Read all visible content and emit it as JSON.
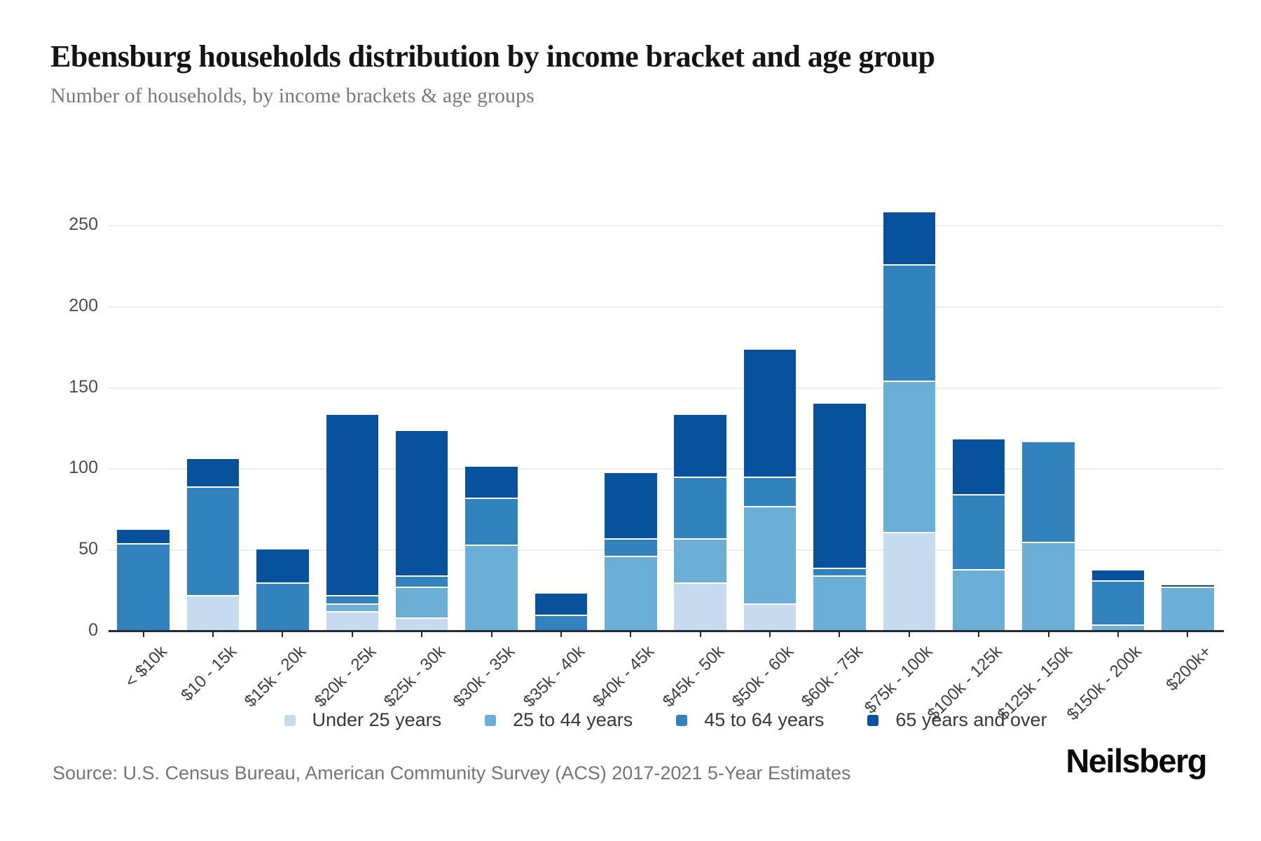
{
  "header": {
    "title": "Ebensburg households distribution by income bracket and age group",
    "subtitle": "Number of households, by income brackets & age groups"
  },
  "footer": {
    "source": "Source: U.S. Census Bureau, American Community Survey (ACS) 2017-2021 5-Year Estimates",
    "brand": "Neilsberg"
  },
  "colors": {
    "under25": "#c6dbef",
    "a25to44": "#6baed6",
    "a45to64": "#3182bd",
    "a65plus": "#08519c",
    "grid": "#ededed",
    "axis": "#252a38",
    "tick_label": "#4c4c4c",
    "xtick_label": "#3f3f3f"
  },
  "chart_data": {
    "type": "bar",
    "stacked": true,
    "title": "Ebensburg households distribution by income bracket and age group",
    "xlabel": "",
    "ylabel": "Number of households",
    "ylim": [
      0,
      263
    ],
    "yticks": [
      0,
      50,
      100,
      150,
      200,
      250
    ],
    "grid": "horizontal",
    "legend_position": "bottom",
    "categories": [
      "< $10k",
      "$10 - 15k",
      "$15k - 20k",
      "$20k - 25k",
      "$25k - 30k",
      "$30k - 35k",
      "$35k - 40k",
      "$40k - 45k",
      "$45k - 50k",
      "$50k - 60k",
      "$60k - 75k",
      "$75k - 100k",
      "$100k - 125k",
      "$125k - 150k",
      "$150k - 200k",
      "$200k+"
    ],
    "series": [
      {
        "name": "Under 25 years",
        "color_key": "under25",
        "values": [
          0,
          22,
          0,
          12,
          8,
          0,
          0,
          0,
          30,
          17,
          0,
          61,
          0,
          0,
          0,
          0
        ]
      },
      {
        "name": "25 to 44 years",
        "color_key": "a25to44",
        "values": [
          0,
          0,
          0,
          5,
          19,
          53,
          0,
          46,
          27,
          60,
          34,
          93,
          38,
          55,
          4,
          27
        ]
      },
      {
        "name": "45 to 64 years",
        "color_key": "a45to64",
        "values": [
          54,
          67,
          30,
          5,
          7,
          29,
          10,
          11,
          38,
          18,
          5,
          72,
          46,
          61,
          27,
          0
        ]
      },
      {
        "name": "65 years and over",
        "color_key": "a65plus",
        "values": [
          8,
          17,
          20,
          111,
          89,
          19,
          13,
          40,
          38,
          78,
          101,
          32,
          34,
          0,
          6,
          1
        ]
      }
    ],
    "totals": [
      62,
      106,
      50,
      133,
      123,
      101,
      23,
      97,
      133,
      173,
      140,
      258,
      118,
      116,
      37,
      28
    ]
  }
}
